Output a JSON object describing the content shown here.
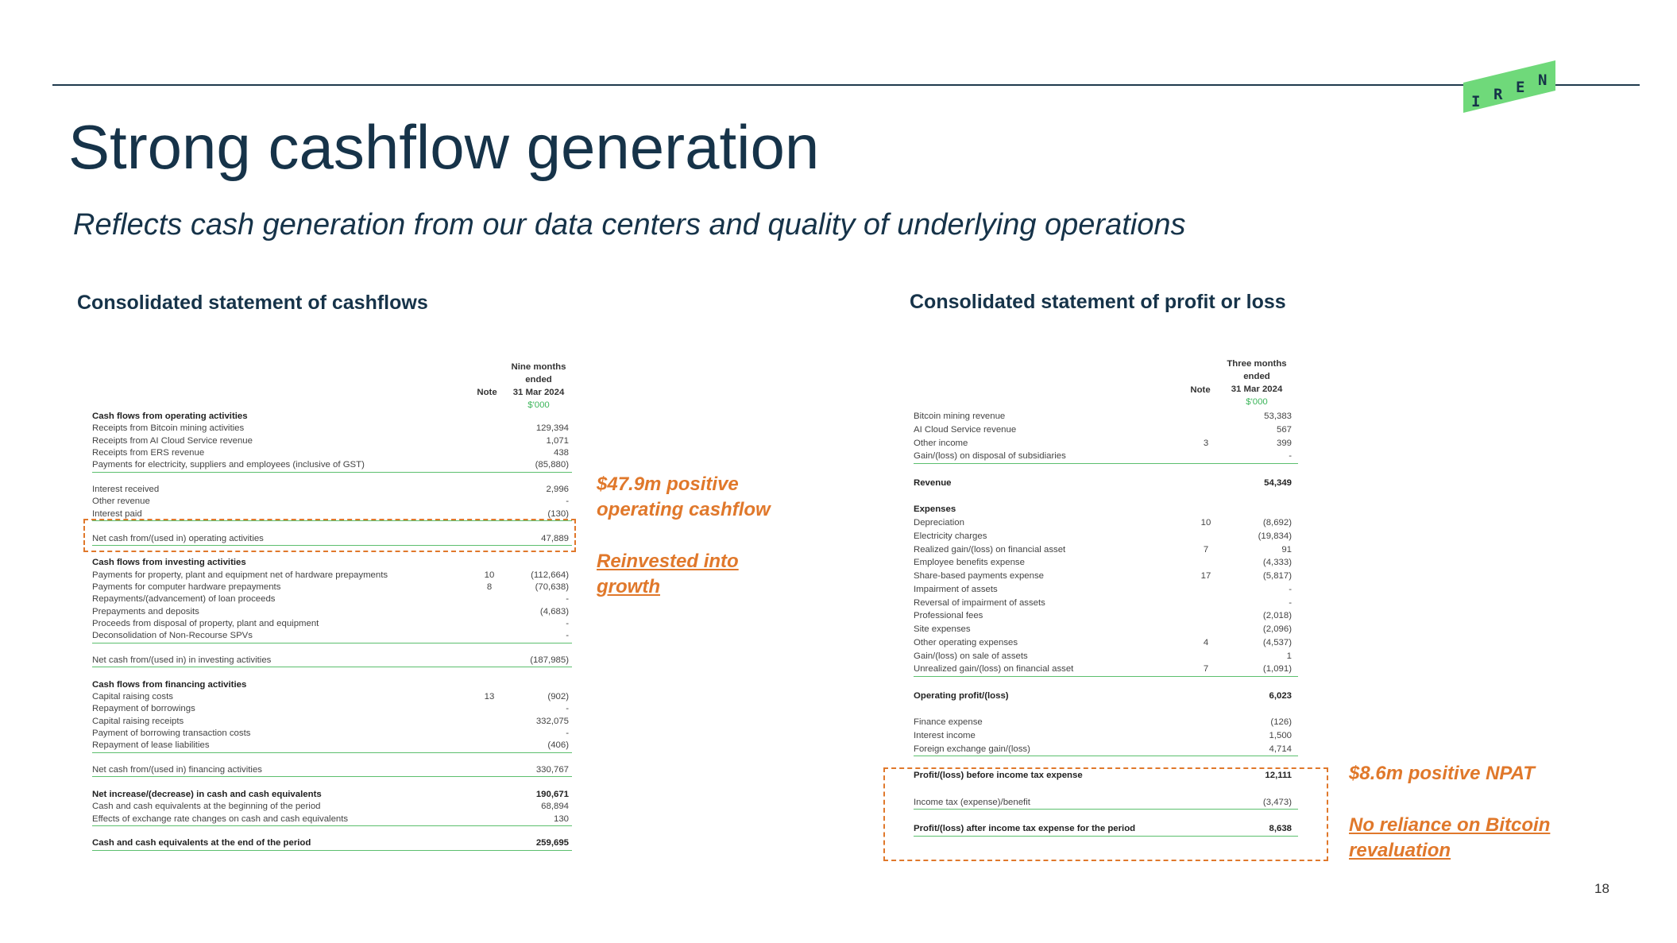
{
  "slide": {
    "title": "Strong cashflow generation",
    "subtitle": "Reflects cash generation from our data centers and quality of underlying operations",
    "page_number": "18",
    "logo_letters": [
      "I",
      "R",
      "E",
      "N"
    ],
    "accent_color": "#e0782b",
    "title_color": "#163349",
    "logo_color": "#6fd97a"
  },
  "cashflow": {
    "section_title": "Consolidated statement of cashflows",
    "header": {
      "note": "Note",
      "period_line1": "Nine months",
      "period_line2": "ended",
      "period_line3": "31 Mar 2024",
      "unit": "$'000"
    },
    "rows": [
      {
        "label": "Cash flows from operating activities",
        "note": "",
        "value": "",
        "bold": true
      },
      {
        "label": "Receipts from Bitcoin mining activities",
        "note": "",
        "value": "129,394"
      },
      {
        "label": "Receipts from AI Cloud Service revenue",
        "note": "",
        "value": "1,071"
      },
      {
        "label": "Receipts from ERS revenue",
        "note": "",
        "value": "438"
      },
      {
        "label": "Payments for electricity, suppliers and employees (inclusive of GST)",
        "note": "",
        "value": "(85,880)",
        "underline": true
      },
      {
        "label": "",
        "note": "",
        "value": ""
      },
      {
        "label": "Interest received",
        "note": "",
        "value": "2,996"
      },
      {
        "label": "Other revenue",
        "note": "",
        "value": "-"
      },
      {
        "label": "Interest paid",
        "note": "",
        "value": "(130)",
        "underline": true
      },
      {
        "label": "",
        "note": "",
        "value": ""
      },
      {
        "label": "Net cash from/(used in) operating activities",
        "note": "",
        "value": "47,889",
        "underline": true
      },
      {
        "label": "",
        "note": "",
        "value": ""
      },
      {
        "label": "Cash flows from investing activities",
        "note": "",
        "value": "",
        "bold": true
      },
      {
        "label": "Payments for property, plant and equipment net of hardware prepayments",
        "note": "10",
        "value": "(112,664)"
      },
      {
        "label": "Payments for computer hardware prepayments",
        "note": "8",
        "value": "(70,638)"
      },
      {
        "label": "Repayments/(advancement) of loan proceeds",
        "note": "",
        "value": "-"
      },
      {
        "label": "Prepayments and deposits",
        "note": "",
        "value": "(4,683)"
      },
      {
        "label": "Proceeds from disposal of property, plant and equipment",
        "note": "",
        "value": "-"
      },
      {
        "label": "Deconsolidation of Non-Recourse SPVs",
        "note": "",
        "value": "-",
        "underline": true
      },
      {
        "label": "",
        "note": "",
        "value": ""
      },
      {
        "label": "Net cash from/(used in) in investing activities",
        "note": "",
        "value": "(187,985)",
        "underline": true
      },
      {
        "label": "",
        "note": "",
        "value": ""
      },
      {
        "label": "Cash flows from financing activities",
        "note": "",
        "value": "",
        "bold": true
      },
      {
        "label": "Capital raising costs",
        "note": "13",
        "value": "(902)"
      },
      {
        "label": "Repayment of borrowings",
        "note": "",
        "value": "-"
      },
      {
        "label": "Capital raising receipts",
        "note": "",
        "value": "332,075"
      },
      {
        "label": "Payment of borrowing transaction costs",
        "note": "",
        "value": "-"
      },
      {
        "label": "Repayment of lease liabilities",
        "note": "",
        "value": "(406)",
        "underline": true
      },
      {
        "label": "",
        "note": "",
        "value": ""
      },
      {
        "label": "Net cash from/(used in) financing activities",
        "note": "",
        "value": "330,767",
        "underline": true
      },
      {
        "label": "",
        "note": "",
        "value": ""
      },
      {
        "label": "Net increase/(decrease) in cash and cash equivalents",
        "note": "",
        "value": "190,671",
        "bold": true
      },
      {
        "label": "Cash and cash equivalents at the beginning of the period",
        "note": "",
        "value": "68,894"
      },
      {
        "label": "Effects of exchange rate changes on cash and cash equivalents",
        "note": "",
        "value": "130",
        "underline": true
      },
      {
        "label": "",
        "note": "",
        "value": ""
      },
      {
        "label": "Cash and cash equivalents at the end of the period",
        "note": "",
        "value": "259,695",
        "bold": true,
        "underline": true
      }
    ]
  },
  "profit_loss": {
    "section_title": "Consolidated statement of profit or loss",
    "header": {
      "note": "Note",
      "period_line1": "Three months",
      "period_line2": "ended",
      "period_line3": "31 Mar 2024",
      "unit": "$'000"
    },
    "rows": [
      {
        "label": "Bitcoin mining revenue",
        "note": "",
        "value": "53,383"
      },
      {
        "label": "AI Cloud Service revenue",
        "note": "",
        "value": "567"
      },
      {
        "label": "Other income",
        "note": "3",
        "value": "399"
      },
      {
        "label": "Gain/(loss) on disposal of subsidiaries",
        "note": "",
        "value": "-",
        "underline": true
      },
      {
        "label": "",
        "note": "",
        "value": ""
      },
      {
        "label": "Revenue",
        "note": "",
        "value": "54,349",
        "bold": true
      },
      {
        "label": "",
        "note": "",
        "value": ""
      },
      {
        "label": "Expenses",
        "note": "",
        "value": "",
        "bold": true
      },
      {
        "label": "Depreciation",
        "note": "10",
        "value": "(8,692)"
      },
      {
        "label": "Electricity charges",
        "note": "",
        "value": "(19,834)"
      },
      {
        "label": "Realized gain/(loss) on financial asset",
        "note": "7",
        "value": "91"
      },
      {
        "label": "Employee benefits expense",
        "note": "",
        "value": "(4,333)"
      },
      {
        "label": "Share-based payments expense",
        "note": "17",
        "value": "(5,817)"
      },
      {
        "label": "Impairment of assets",
        "note": "",
        "value": "-"
      },
      {
        "label": "Reversal of impairment of assets",
        "note": "",
        "value": "-"
      },
      {
        "label": "Professional fees",
        "note": "",
        "value": "(2,018)"
      },
      {
        "label": "Site expenses",
        "note": "",
        "value": "(2,096)"
      },
      {
        "label": "Other operating expenses",
        "note": "4",
        "value": "(4,537)"
      },
      {
        "label": "Gain/(loss) on sale of assets",
        "note": "",
        "value": "1"
      },
      {
        "label": "Unrealized gain/(loss) on financial asset",
        "note": "7",
        "value": "(1,091)",
        "underline": true
      },
      {
        "label": "",
        "note": "",
        "value": ""
      },
      {
        "label": "Operating profit/(loss)",
        "note": "",
        "value": "6,023",
        "bold": true
      },
      {
        "label": "",
        "note": "",
        "value": ""
      },
      {
        "label": "Finance expense",
        "note": "",
        "value": "(126)"
      },
      {
        "label": "Interest income",
        "note": "",
        "value": "1,500"
      },
      {
        "label": "Foreign exchange gain/(loss)",
        "note": "",
        "value": "4,714",
        "underline": true
      },
      {
        "label": "",
        "note": "",
        "value": ""
      },
      {
        "label": "Profit/(loss) before income tax expense",
        "note": "",
        "value": "12,111",
        "bold": true
      },
      {
        "label": "",
        "note": "",
        "value": ""
      },
      {
        "label": "Income tax (expense)/benefit",
        "note": "",
        "value": "(3,473)",
        "underline": true
      },
      {
        "label": "",
        "note": "",
        "value": ""
      },
      {
        "label": "Profit/(loss) after income tax expense for the period",
        "note": "",
        "value": "8,638",
        "bold": true,
        "underline": true
      }
    ]
  },
  "callouts": {
    "cashflow_line1": "$47.9m positive",
    "cashflow_line2": "operating cashflow",
    "reinvest_line1": "Reinvested into",
    "reinvest_line2": "growth",
    "npat": "$8.6m positive NPAT",
    "bitcoin_line1": "No reliance on Bitcoin",
    "bitcoin_line2": "revaluation"
  }
}
